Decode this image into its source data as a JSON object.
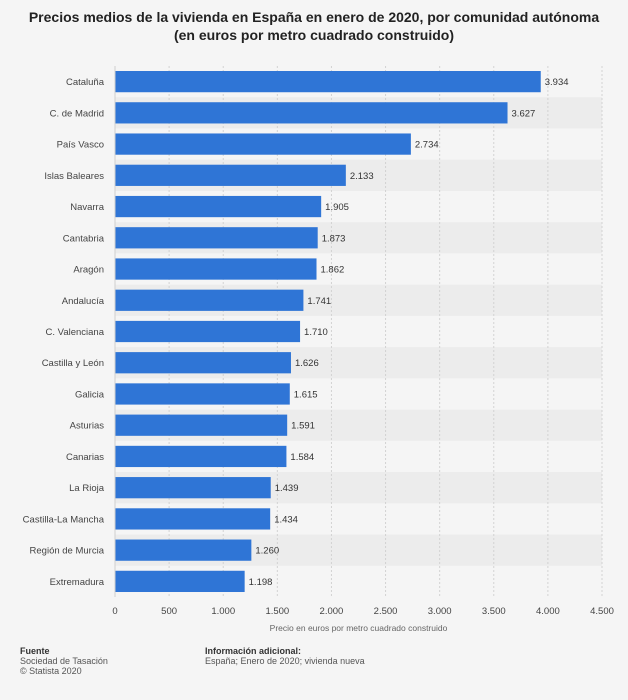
{
  "title_line1": "Precios medios de la vivienda en España en enero de 2020, por comunidad autónoma",
  "title_line2": "(en euros por metro cuadrado construido)",
  "footer": {
    "source_heading": "Fuente",
    "source_lines": [
      "Sociedad de Tasación",
      "© Statista 2020"
    ],
    "info_heading": "Información adicional:",
    "info_lines": [
      "España; Enero de 2020; vivienda nueva"
    ]
  },
  "chart_data": {
    "type": "bar",
    "orientation": "horizontal",
    "categories": [
      "Cataluña",
      "C. de Madrid",
      "País Vasco",
      "Islas Baleares",
      "Navarra",
      "Cantabria",
      "Aragón",
      "Andalucía",
      "C. Valenciana",
      "Castilla y León",
      "Galicia",
      "Asturias",
      "Canarias",
      "La Rioja",
      "Castilla-La Mancha",
      "Región de Murcia",
      "Extremadura"
    ],
    "values": [
      3934,
      3627,
      2734,
      2133,
      1905,
      1873,
      1862,
      1741,
      1710,
      1626,
      1615,
      1591,
      1584,
      1439,
      1434,
      1260,
      1198
    ],
    "value_labels": [
      "3.934",
      "3.627",
      "2.734",
      "2.133",
      "1.905",
      "1.873",
      "1.862",
      "1.741",
      "1.710",
      "1.626",
      "1.615",
      "1.591",
      "1.584",
      "1.439",
      "1.434",
      "1.260",
      "1.198"
    ],
    "xlabel": "Precio en euros por metro cuadrado construido",
    "xlim": [
      0,
      4500
    ],
    "ticks": [
      0,
      500,
      1000,
      1500,
      2000,
      2500,
      3000,
      3500,
      4000,
      4500
    ],
    "tick_labels": [
      "0",
      "500",
      "1.000",
      "1.500",
      "2.000",
      "2.500",
      "3.000",
      "3.500",
      "4.000",
      "4.500"
    ],
    "bar_color": "#2f75d6",
    "band_color": "#ececec",
    "grid": "vertical dashed"
  }
}
